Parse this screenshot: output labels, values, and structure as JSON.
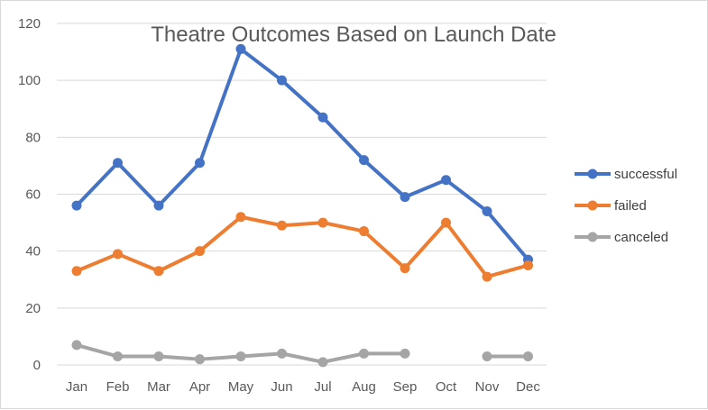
{
  "chart_data": {
    "type": "line",
    "title": "Theatre Outcomes Based on Launch Date",
    "xlabel": "",
    "ylabel": "",
    "categories": [
      "Jan",
      "Feb",
      "Mar",
      "Apr",
      "May",
      "Jun",
      "Jul",
      "Aug",
      "Sep",
      "Oct",
      "Nov",
      "Dec"
    ],
    "ylim": [
      0,
      120
    ],
    "yticks": [
      0,
      20,
      40,
      60,
      80,
      100,
      120
    ],
    "grid": true,
    "legend_position": "right",
    "series": [
      {
        "name": "successful",
        "color": "#4472C4",
        "values": [
          56,
          71,
          56,
          71,
          111,
          100,
          87,
          72,
          59,
          65,
          54,
          37
        ]
      },
      {
        "name": "failed",
        "color": "#ED7D31",
        "values": [
          33,
          39,
          33,
          40,
          52,
          49,
          50,
          47,
          34,
          50,
          31,
          35
        ]
      },
      {
        "name": "canceled",
        "color": "#A5A5A5",
        "values": [
          7,
          3,
          3,
          2,
          3,
          4,
          1,
          4,
          4,
          null,
          3,
          3
        ]
      }
    ]
  }
}
